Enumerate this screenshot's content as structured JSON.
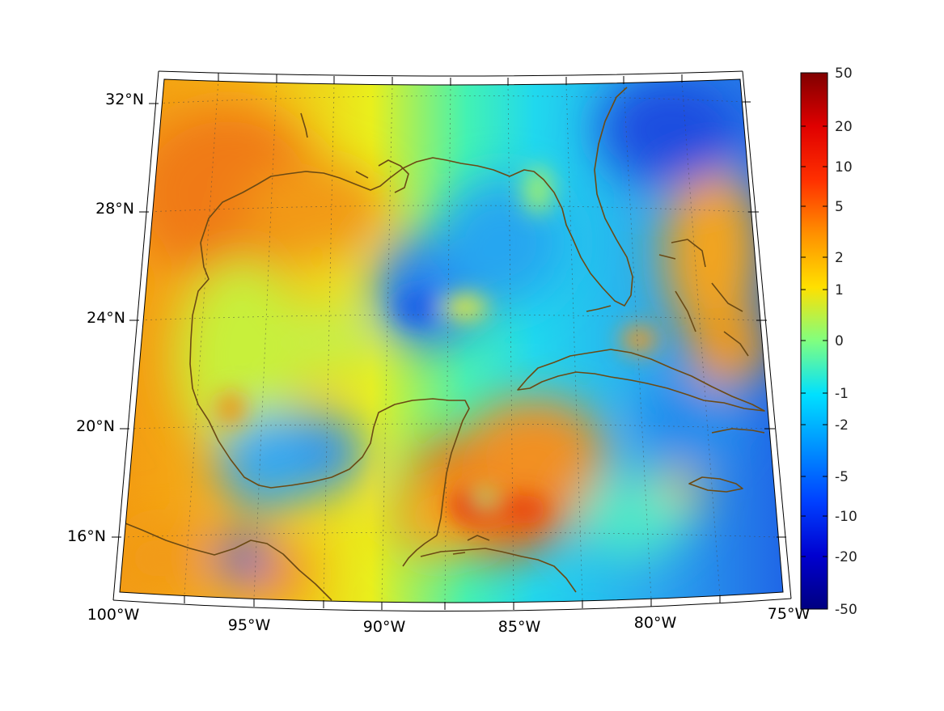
{
  "map": {
    "projection": "conic",
    "lon_range": [
      -100,
      -75
    ],
    "lat_range": [
      14.5,
      33
    ],
    "lat_labels": [
      "16°N",
      "20°N",
      "24°N",
      "28°N",
      "32°N"
    ],
    "lon_labels": [
      "100°W",
      "95°W",
      "90°W",
      "85°W",
      "80°W",
      "75°W"
    ],
    "coastline_color": "#6b4a14",
    "gridline_style": "dotted",
    "colormap": "jet"
  },
  "colorbar": {
    "tick_labels": [
      "50",
      "20",
      "10",
      "5",
      "2",
      "1",
      "0",
      "-1",
      "-2",
      "-5",
      "-10",
      "-20",
      "-50"
    ],
    "range": [
      -50,
      50
    ]
  }
}
